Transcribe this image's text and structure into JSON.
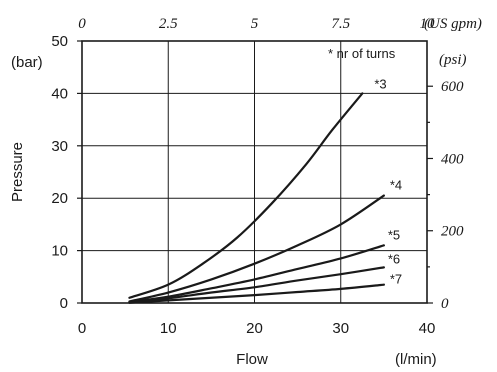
{
  "chart_data": {
    "type": "line",
    "x_axis": {
      "label": "Flow",
      "unit": "(l/min)",
      "range": [
        0,
        40
      ],
      "ticks": [
        "0",
        "10",
        "20",
        "30",
        "40"
      ]
    },
    "y_axis": {
      "label": "Pressure",
      "unit": "(bar)",
      "range": [
        0,
        50
      ],
      "ticks": [
        "0",
        "10",
        "20",
        "30",
        "40",
        "50"
      ]
    },
    "secondary_x_axis": {
      "unit": "(US gpm)",
      "range": [
        0,
        10
      ],
      "ticks": [
        "0",
        "2.5",
        "5",
        "7.5",
        "10"
      ]
    },
    "secondary_y_axis": {
      "unit": "(psi)",
      "ticks": [
        "0",
        "200",
        "400",
        "600"
      ],
      "tick_values_bar": [
        0,
        13.79,
        27.58,
        41.37
      ]
    },
    "note": "* nr of turns",
    "grid": {
      "vertical_at": [
        10,
        20,
        30
      ],
      "horizontal_at": [
        10,
        20,
        30,
        40
      ]
    },
    "series": [
      {
        "name": "*3",
        "points": [
          [
            5.5,
            1
          ],
          [
            10,
            3.5
          ],
          [
            14,
            7.5
          ],
          [
            18,
            12.5
          ],
          [
            22,
            19
          ],
          [
            26,
            26.5
          ],
          [
            29,
            33
          ],
          [
            32.5,
            40
          ]
        ]
      },
      {
        "name": "*4",
        "points": [
          [
            5.5,
            0.3
          ],
          [
            10,
            2
          ],
          [
            15,
            4.5
          ],
          [
            20,
            7.5
          ],
          [
            25,
            11
          ],
          [
            30,
            15
          ],
          [
            35,
            20.5
          ]
        ]
      },
      {
        "name": "*5",
        "points": [
          [
            5.5,
            0.2
          ],
          [
            10,
            1.2
          ],
          [
            15,
            2.8
          ],
          [
            20,
            4.5
          ],
          [
            25,
            6.5
          ],
          [
            30,
            8.5
          ],
          [
            35,
            11
          ]
        ]
      },
      {
        "name": "*6",
        "points": [
          [
            5.5,
            0.1
          ],
          [
            10,
            0.9
          ],
          [
            15,
            2
          ],
          [
            20,
            3
          ],
          [
            25,
            4.3
          ],
          [
            30,
            5.5
          ],
          [
            35,
            6.8
          ]
        ]
      },
      {
        "name": "*7",
        "points": [
          [
            5.5,
            0.05
          ],
          [
            10,
            0.5
          ],
          [
            15,
            1
          ],
          [
            20,
            1.5
          ],
          [
            25,
            2.1
          ],
          [
            30,
            2.7
          ],
          [
            35,
            3.5
          ]
        ]
      }
    ]
  }
}
